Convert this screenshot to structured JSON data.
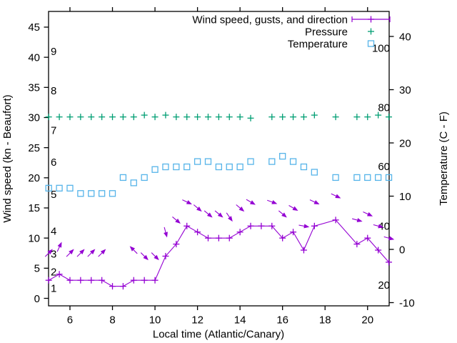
{
  "chart_data": {
    "type": "line",
    "title": "",
    "xlabel": "Local time (Atlantic/Canary)",
    "ylabel": "Wind speed (kn - Beaufort)",
    "y2label": "Temperature (C - F)",
    "x_range": [
      5,
      21.05
    ],
    "y_left_range_kn": [
      -1.3,
      48.8
    ],
    "y_right_range_c": [
      -10.7,
      44.7
    ],
    "grid": "off",
    "legend_position": "top-right-inside",
    "x_ticks": [
      6,
      8,
      10,
      12,
      14,
      16,
      18,
      20
    ],
    "y_left_ticks_kn": [
      0,
      5,
      10,
      15,
      20,
      25,
      30,
      35,
      40,
      45
    ],
    "y_right_ticks_c": [
      -10,
      0,
      10,
      20,
      30,
      40
    ],
    "beaufort_scale_labels": [
      {
        "text": "1",
        "kn": 1.7
      },
      {
        "text": "2",
        "kn": 4.4
      },
      {
        "text": "3",
        "kn": 7.4
      },
      {
        "text": "4",
        "kn": 11.2
      },
      {
        "text": "5",
        "kn": 17.3
      },
      {
        "text": "6",
        "kn": 22.6
      },
      {
        "text": "7",
        "kn": 27.9
      },
      {
        "text": "8",
        "kn": 34.5
      },
      {
        "text": "9",
        "kn": 41.0
      }
    ],
    "fahrenheit_scale_labels": [
      {
        "text": "20",
        "c": -6.7
      },
      {
        "text": "40",
        "c": 4.4
      },
      {
        "text": "60",
        "c": 15.6
      },
      {
        "text": "80",
        "c": 26.7
      },
      {
        "text": "100",
        "c": 37.8
      }
    ],
    "legend": [
      {
        "label": "Wind speed, gusts, and direction",
        "marker": "errorbar-line",
        "color": "#9400d3"
      },
      {
        "label": "Pressure",
        "marker": "plus",
        "color": "#009e73"
      },
      {
        "label": "Temperature",
        "marker": "square",
        "color": "#56b4e9"
      }
    ],
    "x_hours": [
      5,
      5.5,
      6,
      6.5,
      7,
      7.5,
      8,
      8.5,
      9,
      9.5,
      10,
      10.5,
      11,
      11.5,
      12,
      12.5,
      13,
      13.5,
      14,
      14.5,
      15,
      15.5,
      16,
      16.5,
      17,
      17.5,
      18,
      18.5,
      19,
      19.5,
      20,
      20.5,
      21
    ],
    "series": [
      {
        "name": "Wind speed",
        "type": "line+plus",
        "axis": "left",
        "color": "#9400d3",
        "values": [
          3,
          4,
          3,
          3,
          3,
          3,
          2,
          2,
          3,
          3,
          3,
          7,
          9,
          12,
          11,
          10,
          10,
          10,
          11,
          12,
          12,
          12,
          10,
          11,
          8,
          12,
          null,
          13,
          null,
          9,
          10,
          8,
          6
        ]
      },
      {
        "name": "Gusts and direction",
        "type": "arrow",
        "axis": "left",
        "color": "#9400d3",
        "values": [
          7.5,
          8.5,
          7.5,
          7.5,
          7.5,
          7.5,
          null,
          null,
          8,
          7,
          7,
          11,
          13,
          16,
          15,
          14,
          14,
          13.5,
          15,
          16,
          null,
          16,
          14,
          15,
          12,
          16,
          null,
          17,
          null,
          13,
          14,
          12,
          10
        ],
        "dir_deg": [
          -45,
          -65,
          -45,
          -45,
          -45,
          -45,
          null,
          null,
          -135,
          45,
          45,
          75,
          40,
          25,
          40,
          40,
          40,
          55,
          40,
          30,
          null,
          20,
          40,
          30,
          10,
          25,
          null,
          25,
          null,
          15,
          25,
          15,
          15
        ]
      },
      {
        "name": "Pressure",
        "type": "plus",
        "axis": "left",
        "color": "#009e73",
        "values": [
          30.1,
          30.1,
          30.1,
          30.1,
          30.1,
          30.1,
          30.1,
          30.1,
          30.1,
          30.4,
          30.1,
          30.4,
          30.1,
          30.1,
          30.1,
          30.1,
          30.1,
          30.1,
          30.1,
          29.9,
          null,
          30.1,
          30.1,
          30.1,
          30.1,
          30.4,
          null,
          30.1,
          null,
          30.1,
          30.1,
          30.4,
          30.1
        ]
      },
      {
        "name": "Temperature",
        "type": "square",
        "axis": "right",
        "color": "#56b4e9",
        "values": [
          11.5,
          11.5,
          11.5,
          10.5,
          10.5,
          10.5,
          10.5,
          13.5,
          12.5,
          13.5,
          15,
          15.5,
          15.5,
          15.5,
          16.5,
          16.5,
          15.5,
          15.5,
          15.5,
          16.5,
          null,
          16.5,
          17.5,
          16.5,
          15.5,
          14.5,
          null,
          13.5,
          null,
          13.5,
          13.5,
          13.5,
          13.5
        ]
      }
    ]
  },
  "colors": {
    "background": "#ffffff",
    "axis": "#000000",
    "wind": "#9400d3",
    "pressure": "#009e73",
    "temperature": "#56b4e9"
  }
}
